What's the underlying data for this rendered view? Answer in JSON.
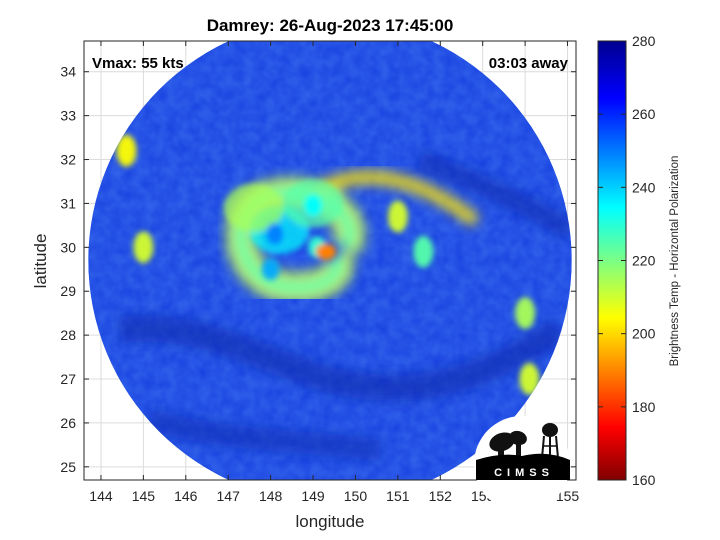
{
  "chart_data": {
    "type": "heatmap",
    "title": "Damrey: 26-Aug-2023 17:45:00",
    "xlabel": "longitude",
    "ylabel": "latitude",
    "xlim": [
      143.6,
      155.2
    ],
    "ylim": [
      24.7,
      34.7
    ],
    "x_ticks": [
      144,
      145,
      146,
      147,
      148,
      149,
      150,
      151,
      152,
      153,
      154,
      155
    ],
    "y_ticks": [
      25,
      26,
      27,
      28,
      29,
      30,
      31,
      32,
      33,
      34
    ],
    "grid": true,
    "annotations": {
      "vmax": "Vmax: 55 kts",
      "time_offset": "03:03 away"
    },
    "swath": {
      "center_lon": 149.4,
      "center_lat": 29.7,
      "radius_deg": 5.7
    },
    "storm_center": {
      "lon": 149.3,
      "lat": 29.9
    },
    "features": [
      {
        "type": "spiral_band",
        "lon": 148.2,
        "lat": 30.4,
        "brightness_temp": 205
      },
      {
        "type": "spiral_band",
        "lon": 147.6,
        "lat": 30.9,
        "brightness_temp": 225
      },
      {
        "type": "spiral_band",
        "lon": 149.0,
        "lat": 31.0,
        "brightness_temp": 215
      },
      {
        "type": "convective_cell",
        "lon": 148.1,
        "lat": 30.3,
        "brightness_temp": 190
      },
      {
        "type": "convective_cell",
        "lon": 148.0,
        "lat": 29.5,
        "brightness_temp": 195
      },
      {
        "type": "convective_cell",
        "lon": 149.0,
        "lat": 30.95,
        "brightness_temp": 205
      },
      {
        "type": "convective_cell",
        "lon": 149.1,
        "lat": 30.0,
        "brightness_temp": 210
      },
      {
        "type": "outer_band",
        "lon": 151.0,
        "lat": 30.7,
        "brightness_temp": 230
      },
      {
        "type": "outer_band",
        "lon": 151.6,
        "lat": 29.9,
        "brightness_temp": 215
      },
      {
        "type": "outer_band",
        "lon": 145.0,
        "lat": 30.0,
        "brightness_temp": 230
      },
      {
        "type": "outer_band",
        "lon": 144.6,
        "lat": 32.2,
        "brightness_temp": 235
      },
      {
        "type": "outer_band",
        "lon": 154.0,
        "lat": 28.5,
        "brightness_temp": 225
      },
      {
        "type": "outer_band",
        "lon": 154.1,
        "lat": 27.0,
        "brightness_temp": 230
      }
    ],
    "colorbar": {
      "label": "Brightness Temp - Horizontal Polarization",
      "range": [
        160,
        280
      ],
      "ticks": [
        160,
        180,
        200,
        220,
        240,
        260,
        280
      ],
      "colormap": "jet"
    }
  },
  "logo": {
    "text": "CIMSS"
  }
}
